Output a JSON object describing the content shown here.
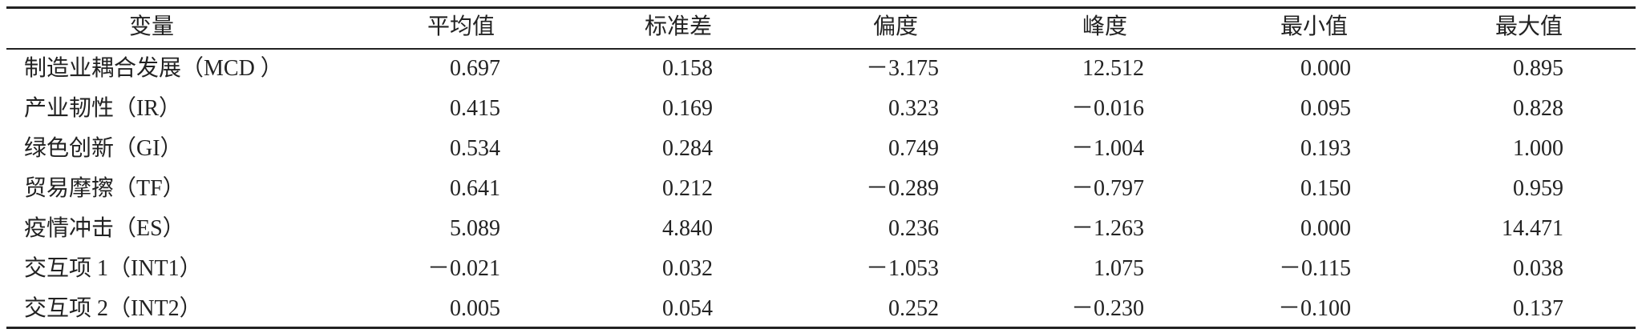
{
  "table": {
    "header": [
      "变量",
      "平均值",
      "标准差",
      "偏度",
      "峰度",
      "最小值",
      "最大值"
    ],
    "rows": [
      [
        "制造业耦合发展（MCD ）",
        "0.697",
        "0.158",
        "－3.175",
        "12.512",
        "0.000",
        "0.895"
      ],
      [
        "产业韧性（IR）",
        "0.415",
        "0.169",
        "0.323",
        "－0.016",
        "0.095",
        "0.828"
      ],
      [
        "绿色创新（GI）",
        "0.534",
        "0.284",
        "0.749",
        "－1.004",
        "0.193",
        "1.000"
      ],
      [
        "贸易摩擦（TF）",
        "0.641",
        "0.212",
        "－0.289",
        "－0.797",
        "0.150",
        "0.959"
      ],
      [
        "疫情冲击（ES）",
        "5.089",
        "4.840",
        "0.236",
        "－1.263",
        "0.000",
        "14.471"
      ],
      [
        "交互项 1（INT1）",
        "－0.021",
        "0.032",
        "－1.053",
        "1.075",
        "－0.115",
        "0.038"
      ],
      [
        "交互项 2（INT2）",
        "0.005",
        "0.054",
        "0.252",
        "－0.230",
        "－0.100",
        "0.137"
      ]
    ]
  }
}
